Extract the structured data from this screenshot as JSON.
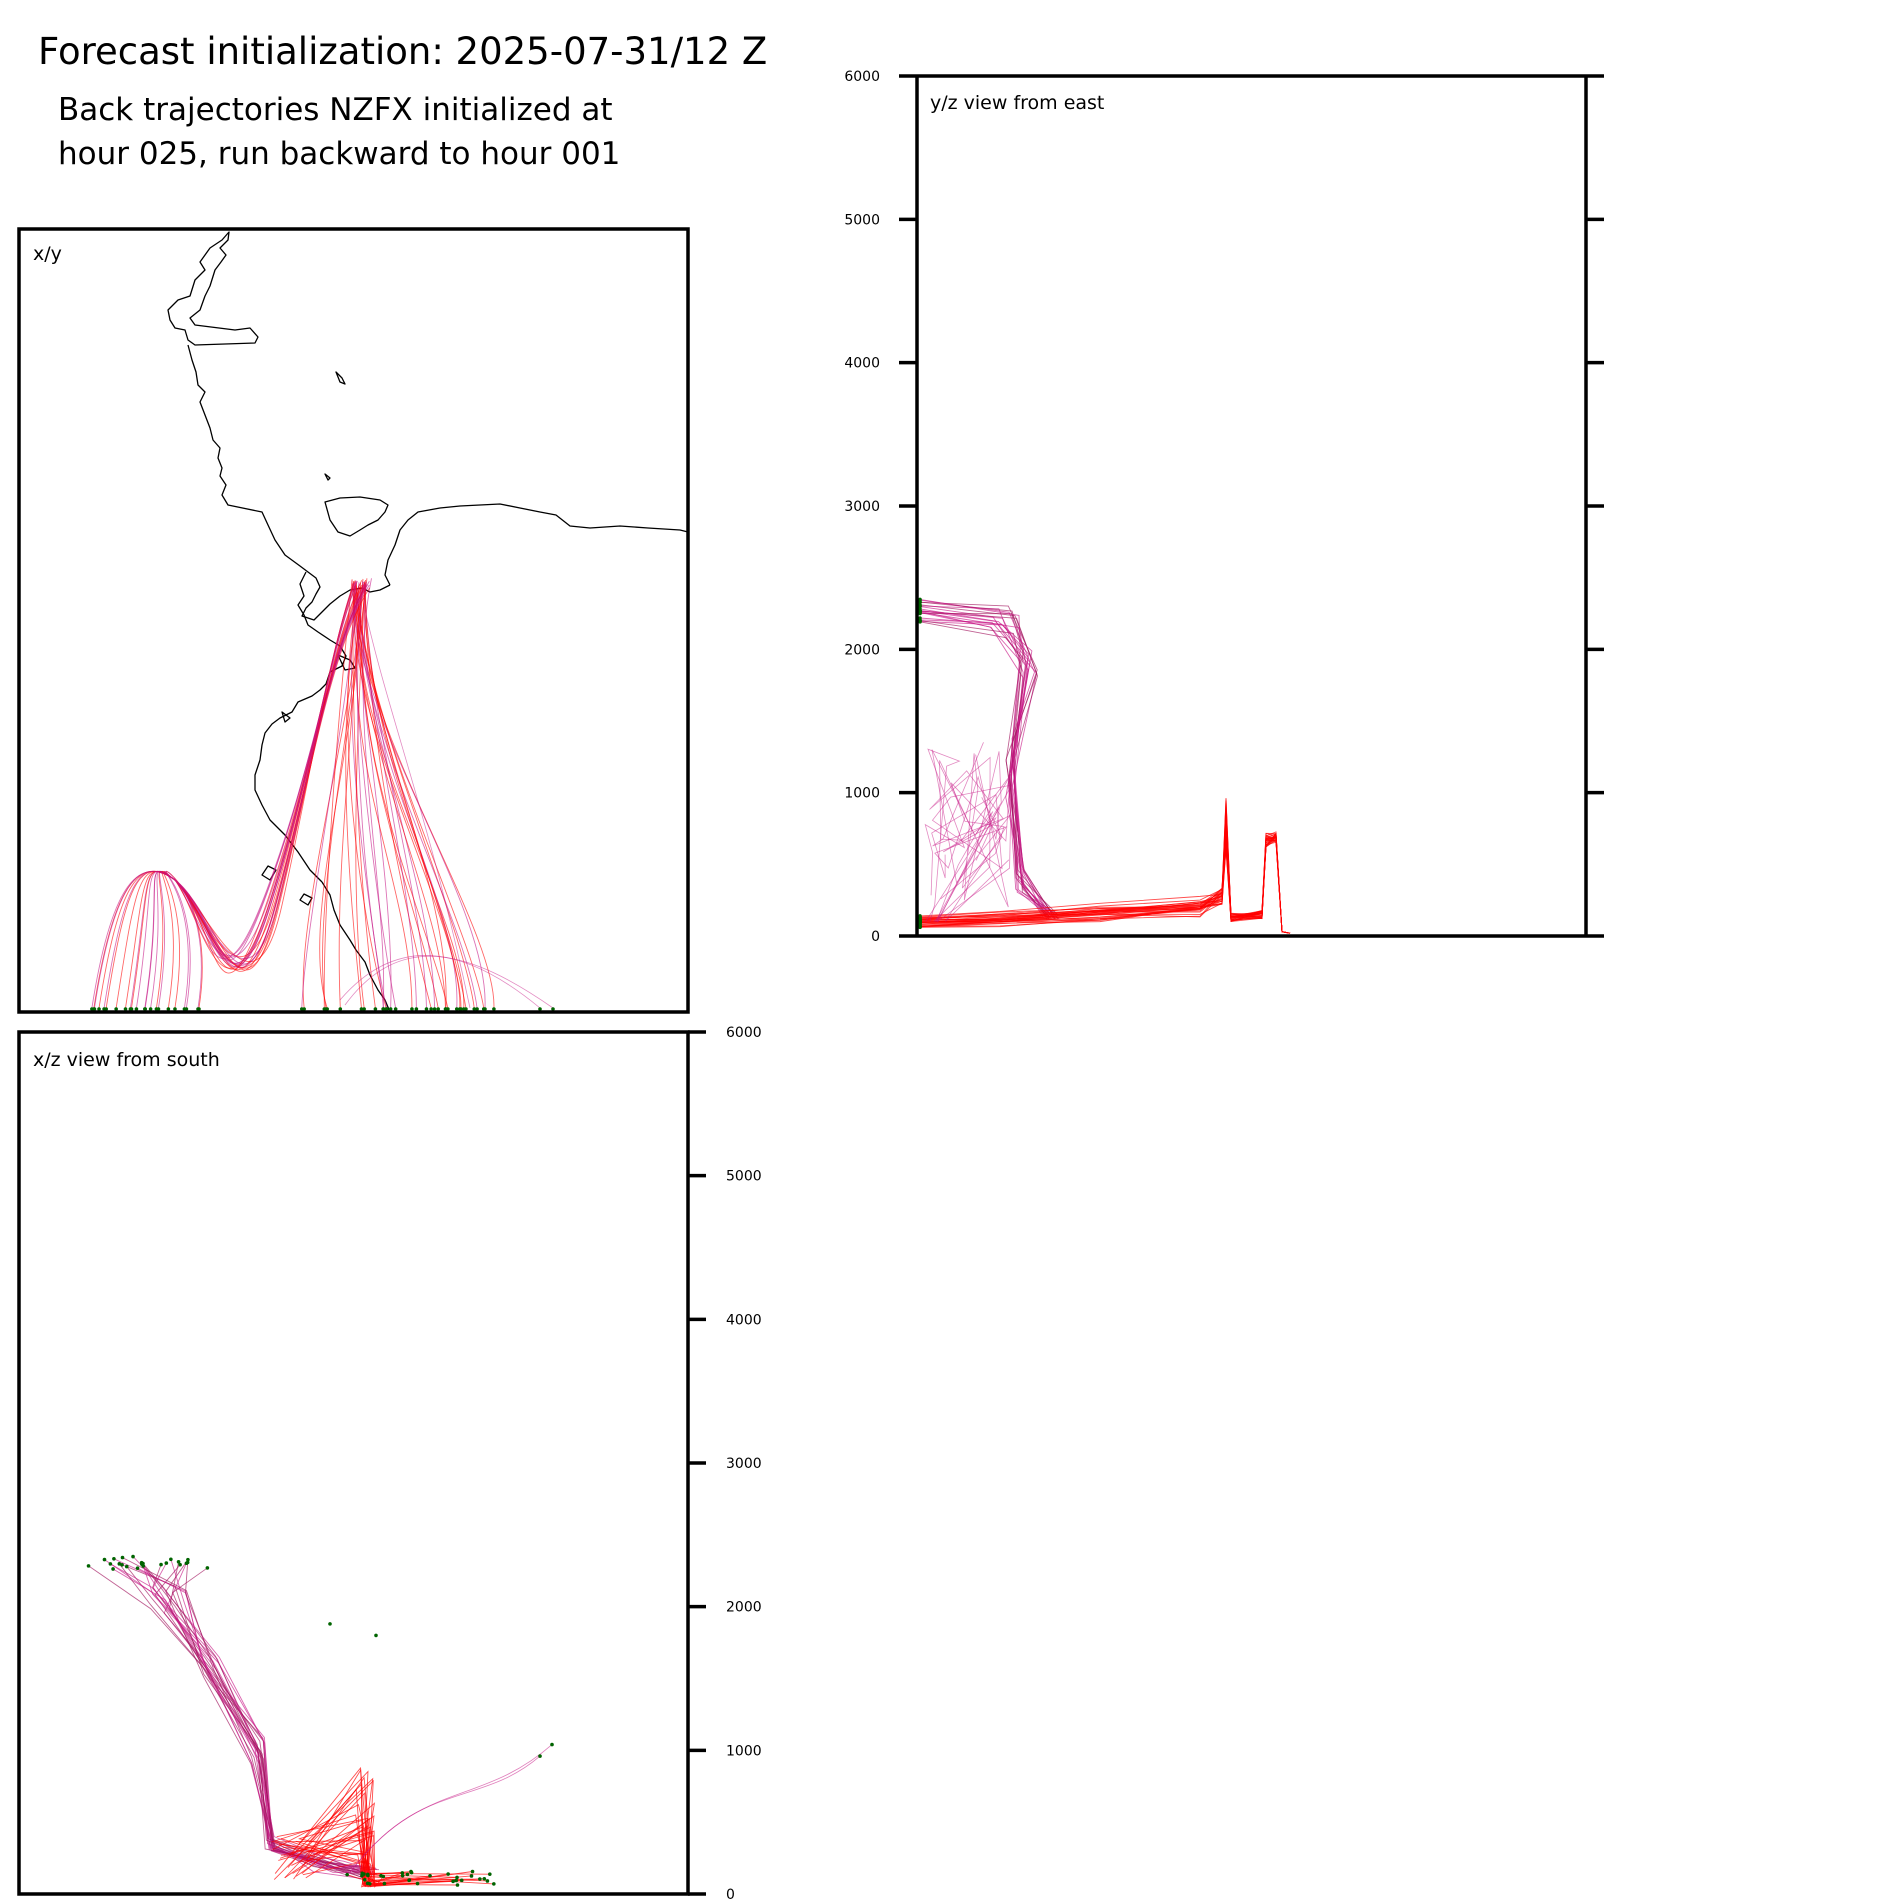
{
  "header": {
    "title": "Forecast initialization: 2025-07-31/12 Z",
    "subtitle_line1": "Back trajectories NZFX initialized at",
    "subtitle_line2": "hour 025, run backward to hour 001"
  },
  "colors": {
    "trajectory_primary": "#ff0000",
    "trajectory_secondary": "#c71585",
    "trajectory_high": "#a0105a",
    "endpoint_marker": "#006400",
    "coastline": "#000000",
    "frame": "#000000"
  },
  "chart_data": [
    {
      "type": "line",
      "panel": "x/y",
      "label": "x/y",
      "description_of_content": "map view with coastline and trajectories",
      "grid": false
    },
    {
      "type": "line",
      "panel": "y/z",
      "label": "y/z view from east",
      "ylim": [
        0,
        6000
      ],
      "yticks": [
        0,
        1000,
        2000,
        3000,
        4000,
        5000,
        6000
      ],
      "ytick_labels": [
        "0",
        "1000",
        "2000",
        "3000",
        "4000",
        "5000",
        "6000"
      ],
      "grid": false
    },
    {
      "type": "line",
      "panel": "x/z",
      "label": "x/z view from south",
      "ylim": [
        0,
        6000
      ],
      "yticks": [
        0,
        1000,
        2000,
        3000,
        4000,
        5000,
        6000
      ],
      "ytick_labels": [
        "0",
        "1000",
        "2000",
        "3000",
        "4000",
        "5000",
        "6000"
      ],
      "grid": false
    }
  ]
}
